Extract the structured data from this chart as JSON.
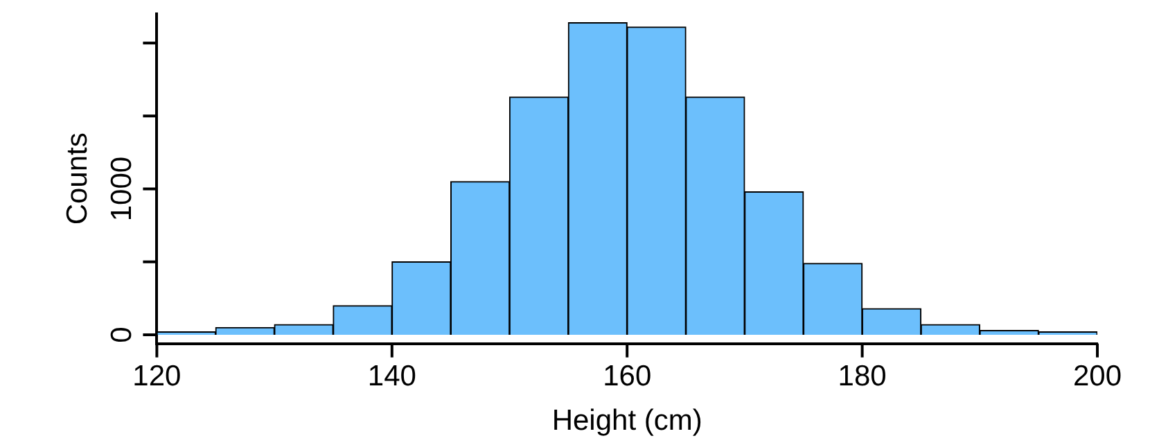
{
  "chart_data": {
    "type": "histogram",
    "xlabel": "Height (cm)",
    "ylabel": "Counts",
    "color": "#6cbffc",
    "bins": [
      120,
      125,
      130,
      135,
      140,
      145,
      150,
      155,
      160,
      165,
      170,
      175,
      180,
      185,
      190,
      195,
      200
    ],
    "values": [
      20,
      50,
      70,
      200,
      500,
      1050,
      1630,
      2140,
      2110,
      1630,
      980,
      490,
      180,
      70,
      30,
      20
    ],
    "xlim": [
      120,
      200
    ],
    "xticks": [
      120,
      140,
      160,
      180,
      200
    ],
    "ylim": [
      -60,
      2200
    ],
    "yticks": [
      0,
      {
        "value": 500,
        "label": null
      },
      1000,
      {
        "value": 1500,
        "label": null
      },
      {
        "value": 2000,
        "label": null
      }
    ],
    "grid": false,
    "legend": false
  }
}
